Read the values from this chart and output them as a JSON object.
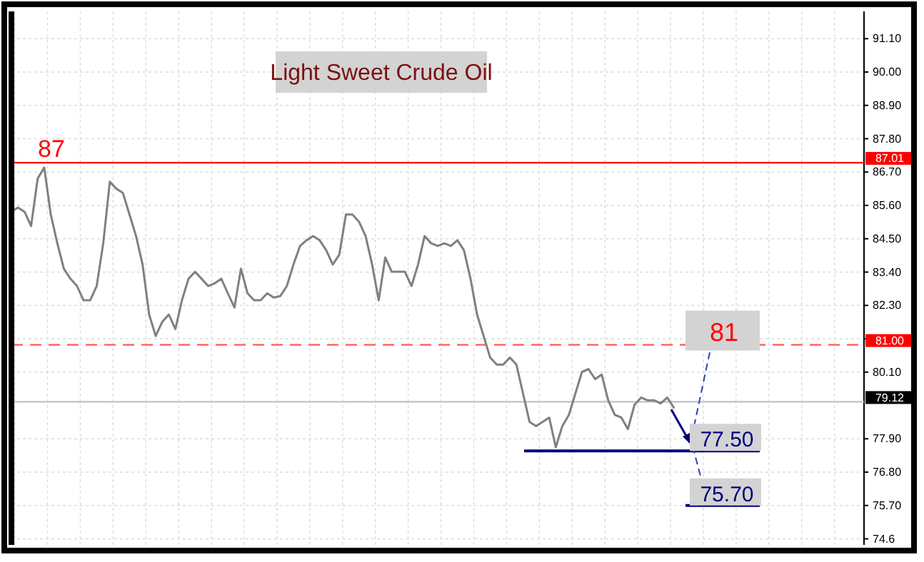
{
  "chart_data": {
    "type": "line",
    "title": "Light Sweet Crude Oil",
    "categories": [
      null,
      null,
      null,
      null,
      null,
      null,
      null,
      null,
      null,
      null,
      null,
      null,
      null,
      null,
      null,
      null,
      null,
      null,
      null,
      null,
      null,
      null,
      null,
      null,
      null,
      null,
      null,
      null,
      null,
      null,
      null,
      null,
      null,
      null,
      null,
      null,
      null,
      null,
      null,
      null,
      null,
      null,
      null,
      null,
      null,
      null,
      null,
      null,
      null,
      null,
      null,
      null,
      null,
      null,
      null,
      null,
      null,
      null,
      null,
      null,
      null,
      null,
      null,
      null,
      null,
      null,
      null,
      null,
      null,
      null,
      null,
      null,
      null,
      null,
      null,
      null,
      null,
      null,
      null,
      null,
      null,
      null,
      null,
      null,
      null,
      null,
      null,
      null,
      null,
      null,
      null,
      null,
      null,
      null,
      null,
      null,
      null,
      null,
      null,
      null,
      null,
      null,
      null,
      null,
      null,
      null,
      null,
      null,
      null,
      null,
      null,
      null,
      null,
      null,
      null,
      null,
      null,
      null,
      null,
      null,
      null,
      null,
      null,
      null,
      null,
      null,
      null,
      null,
      null,
      null,
      null
    ],
    "series": [
      {
        "color": "#808080",
        "values": [
          85.39,
          85.53,
          85.39,
          84.92,
          86.48,
          86.85,
          85.3,
          84.35,
          83.51,
          83.18,
          82.94,
          82.47,
          82.47,
          82.94,
          84.35,
          86.38,
          86.15,
          86.01,
          85.3,
          84.59,
          83.65,
          82.0,
          81.29,
          81.76,
          82.0,
          81.52,
          82.47,
          83.18,
          83.41,
          83.18,
          82.94,
          83.03,
          83.18,
          82.7,
          82.23,
          83.51,
          82.7,
          82.47,
          82.47,
          82.7,
          82.56,
          82.61,
          82.94,
          83.65,
          84.26,
          84.45,
          84.59,
          84.45,
          84.12,
          83.65,
          83.98,
          85.3,
          85.3,
          85.06,
          84.59,
          83.65,
          82.47,
          83.88,
          83.41,
          83.41,
          83.41,
          82.94,
          83.65,
          84.59,
          84.35,
          84.26,
          84.35,
          84.26,
          84.45,
          84.12,
          83.18,
          82.0,
          81.29,
          80.58,
          80.35,
          80.35,
          80.58,
          80.35,
          79.4,
          78.46,
          78.32,
          78.46,
          78.6,
          77.62,
          78.32,
          78.69,
          79.4,
          80.11,
          80.2,
          79.87,
          80.02,
          79.17,
          78.69,
          78.6,
          78.22,
          79.02,
          79.26,
          79.17,
          79.17,
          79.07,
          79.26,
          78.93,
          null,
          null,
          null,
          null,
          null,
          null,
          null,
          null,
          null,
          null,
          null,
          null,
          null,
          null,
          null,
          null,
          null,
          null,
          null,
          null,
          null,
          null,
          null,
          null,
          null,
          null,
          null,
          null,
          null
        ]
      }
    ],
    "ylim": [
      74.4,
      92.0
    ],
    "yticks": [
      74.6,
      {
        "value": 75.7,
        "label": "75.70"
      },
      {
        "value": 76.8,
        "label": "76.80"
      },
      {
        "value": 77.9,
        "label": "77.90"
      },
      {
        "value": 80.1,
        "label": "80.10"
      },
      {
        "value": 81.2,
        "label": null
      },
      {
        "value": 82.3,
        "label": "82.30"
      },
      {
        "value": 83.4,
        "label": "83.40"
      },
      {
        "value": 84.5,
        "label": "84.50"
      },
      {
        "value": 85.6,
        "label": "85.60"
      },
      {
        "value": 86.7,
        "label": "86.70"
      },
      {
        "value": 87.8,
        "label": "87.80"
      },
      {
        "value": 88.9,
        "label": "88.90"
      },
      {
        "value": 90.0,
        "label": "90.00"
      },
      {
        "value": 91.1,
        "label": "91.10"
      }
    ],
    "grid": true,
    "ref_lines": [
      {
        "axis": "y",
        "value": 87.01,
        "label": "87.01",
        "color": "#ff0000",
        "line_style": "solid"
      },
      {
        "axis": "y",
        "value": 81.0,
        "label": "81.00",
        "color": "#ff6666",
        "line_style": "dashed"
      },
      {
        "axis": "y",
        "value": 79.12,
        "label": "79.12",
        "color": "#c0c0c0",
        "line_style": "solid"
      },
      {
        "axis": "y",
        "value": 77.5,
        "color": "#000080",
        "line_style": "solid"
      },
      {
        "axis": "y",
        "value": 75.7,
        "color": "#000080",
        "line_style": "solid"
      }
    ],
    "annotations": [
      {
        "text": "87",
        "y": 87.01
      },
      {
        "text": "81",
        "y": 81.0
      },
      {
        "text": "77.50",
        "y": 77.5
      },
      {
        "text": "75.70",
        "y": 75.7
      }
    ]
  }
}
